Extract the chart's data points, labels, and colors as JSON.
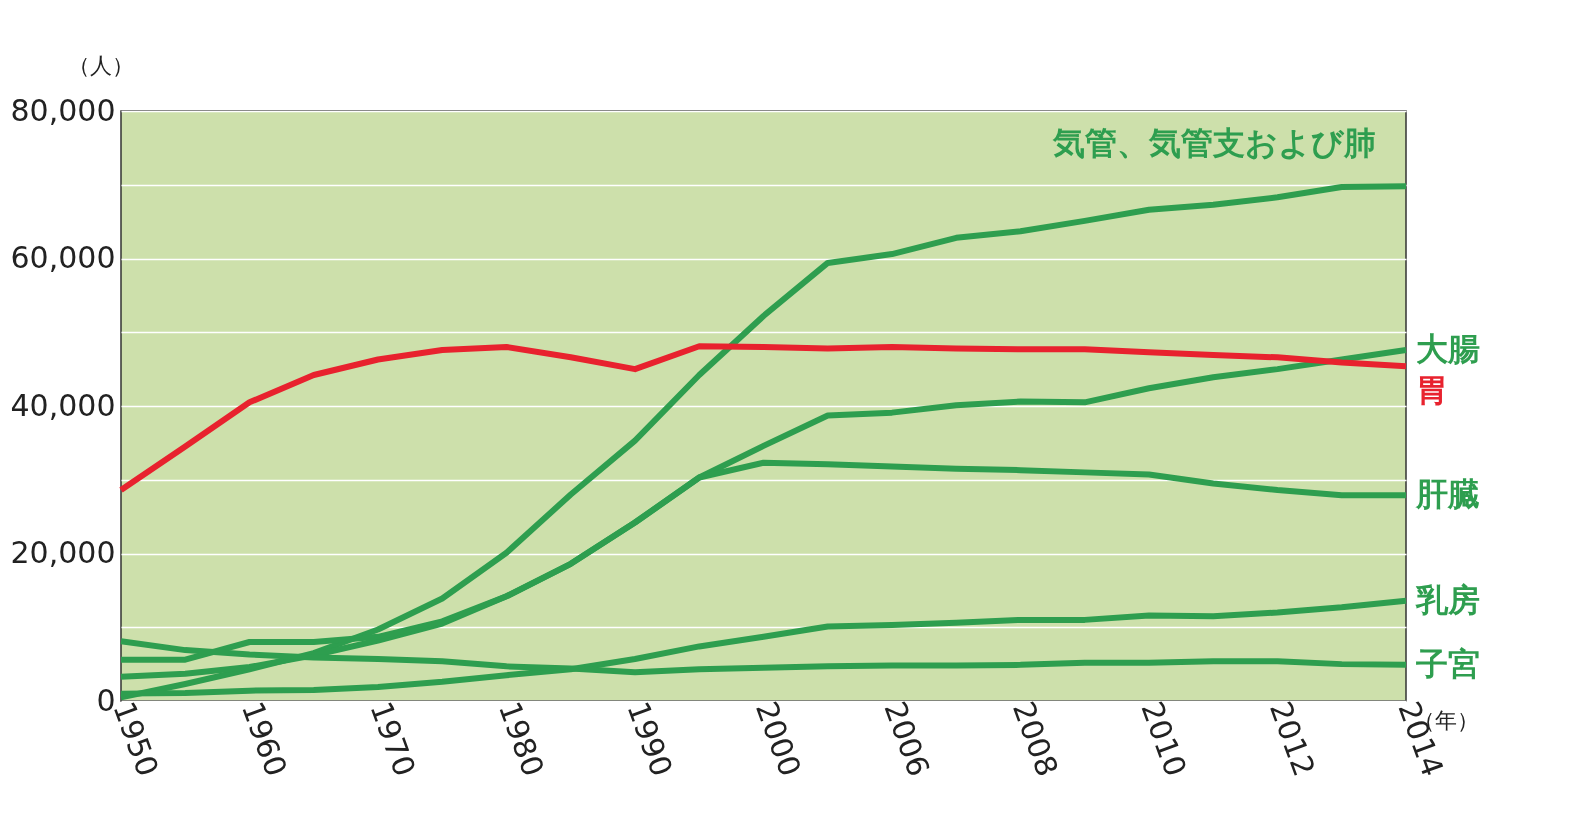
{
  "chart_data": {
    "type": "line",
    "ylabel": "（人）",
    "xlabel": "（年）",
    "categories": [
      "1950",
      null,
      "1960",
      null,
      "1970",
      null,
      "1980",
      null,
      "1990",
      null,
      "2000",
      null,
      "2006",
      null,
      "2008",
      null,
      "2010",
      null,
      "2012",
      null,
      "2014"
    ],
    "ylim": [
      0,
      80000
    ],
    "yticks": [
      0,
      {
        "value": 10000,
        "label": null
      },
      {
        "value": 20000,
        "label": "20,000"
      },
      {
        "value": 30000,
        "label": null
      },
      {
        "value": 40000,
        "label": "40,000"
      },
      {
        "value": 50000,
        "label": null
      },
      {
        "value": 60000,
        "label": "60,000"
      },
      {
        "value": 70000,
        "label": null
      },
      {
        "value": 80000,
        "label": "80,000"
      }
    ],
    "grid": "y",
    "legend": false,
    "marker": "none",
    "line_style": "solid",
    "series": [
      {
        "name": "気管、気管支および肺",
        "color": "#2e9e4f",
        "values": [
          500,
          2300,
          4300,
          6500,
          9700,
          13900,
          20100,
          28000,
          35300,
          44200,
          52200,
          59400,
          60600,
          62800,
          63700,
          65100,
          66600,
          67300,
          68300,
          69700,
          69800
        ]
      },
      {
        "name": "大腸",
        "color": "#2e9e4f",
        "values": [
          3300,
          3700,
          4600,
          6200,
          8200,
          10500,
          14200,
          18600,
          24200,
          30300,
          34600,
          38700,
          39100,
          40100,
          40600,
          40500,
          42400,
          43900,
          45000,
          46300,
          47600
        ]
      },
      {
        "name": "肝臓",
        "color": "#2e9e4f",
        "values": [
          5600,
          5600,
          8000,
          8000,
          8700,
          10800,
          14200,
          18600,
          24200,
          30300,
          32300,
          32100,
          31800,
          31500,
          31300,
          31000,
          30700,
          29500,
          28600,
          27900,
          27900
        ]
      },
      {
        "name": "乳房",
        "color": "#2e9e4f",
        "values": [
          1000,
          1100,
          1400,
          1500,
          1900,
          2600,
          3500,
          4300,
          5700,
          7400,
          8700,
          10100,
          10300,
          10600,
          11000,
          11000,
          11600,
          11500,
          12000,
          12700,
          13600
        ]
      },
      {
        "name": "子宮",
        "color": "#2e9e4f",
        "values": [
          8100,
          6900,
          6300,
          5900,
          5700,
          5400,
          4700,
          4400,
          3900,
          4300,
          4500,
          4700,
          4800,
          4800,
          4900,
          5200,
          5200,
          5400,
          5400,
          5000,
          4900
        ]
      },
      {
        "name": "胃",
        "color": "#e8222e",
        "values": [
          28600,
          34500,
          40500,
          44200,
          46300,
          47600,
          48000,
          46600,
          45000,
          48100,
          48000,
          47800,
          48000,
          47800,
          47700,
          47700,
          47300,
          46900,
          46600,
          45900,
          45400
        ]
      }
    ]
  }
}
